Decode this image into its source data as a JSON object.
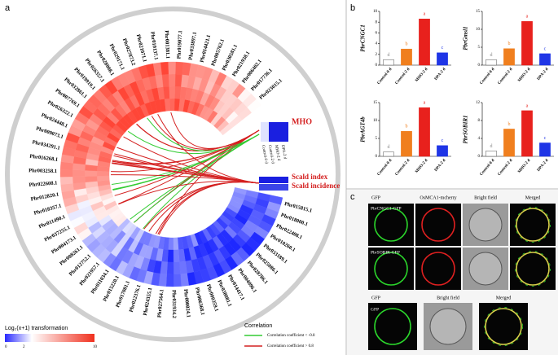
{
  "panel_a": {
    "label": "a",
    "genes": [
      "Phr015815.1",
      "Phr018000.1",
      "Phr022408.1",
      "Phr010260.1",
      "Phr033189.1",
      "Phr025086.1",
      "Phr028786.1",
      "Phr004096.1",
      "Phr014417.1",
      "Phr038081.1",
      "Phr000359.1",
      "Phr006368.1",
      "Phr000024.1",
      "Phr031934.2",
      "Phr027564.1",
      "Phr024355.1",
      "Phr022376.1",
      "Phr017081.1",
      "Phr015220.1",
      "Phr011034.1",
      "Phr021957.1",
      "Phr012752.1",
      "Phr008261.1",
      "Phr004173.1",
      "Phr037255.1",
      "Phr011490.1",
      "Phr018357.1",
      "Phr012820.1",
      "Phr022608.1",
      "Phr003258.1",
      "Phr016268.1",
      "Phr034291.1",
      "Phr009073.1",
      "Phr024448.1",
      "Phr026322.1",
      "Phr007769.1",
      "Phr032861.1",
      "Phr019919.1",
      "Phr026357.1",
      "Phr028008.1",
      "Phr029171.1",
      "Phr027873.2",
      "Phr021071.1",
      "Phr010137.1",
      "Phr001381.1",
      "Phr019077.1",
      "Phr033897.1",
      "Phr014421.1",
      "Phr005762.1",
      "Phr030581.1",
      "Phr021938.1",
      "Phr006402.1",
      "Phr017736.1",
      "Phr023015.1"
    ],
    "tracks": [
      "Control-0 d",
      "Control-2 d",
      "MHO-2 d",
      "DPA-2 d"
    ],
    "trait_main": "MHO",
    "trait_index": "Scald index",
    "trait_incidence": "Scald incidence",
    "legend_title": "Log₂(x+1) transformation",
    "scale_labels": [
      "0",
      "2",
      "10"
    ],
    "corr_title": "Correlation",
    "corr_negative": "Correlation coefficient < -0.8",
    "corr_positive": "Correlation coefficient > 0.8"
  },
  "panel_b": {
    "label": "b"
  },
  "chart_data": [
    {
      "type": "bar",
      "y_label": "PbrCNGC1",
      "categories": [
        "Control-0 d",
        "Control-2 d",
        "MHO-2 d",
        "DPA-2 d"
      ],
      "values": [
        1.0,
        3.0,
        8.6,
        2.3
      ],
      "letters": [
        "d",
        "b",
        "a",
        "c"
      ],
      "colors": [
        "#ffffff",
        "#f07f1e",
        "#e8211d",
        "#1f35e6"
      ],
      "ylim": [
        0,
        10
      ],
      "yticks": [
        0,
        2,
        4,
        6,
        8,
        10
      ]
    },
    {
      "type": "bar",
      "y_label": "PbrGmsl1",
      "categories": [
        "Control-0 d",
        "Control-2 d",
        "MHO-2 d",
        "DPA-2 d"
      ],
      "values": [
        1.5,
        4.6,
        12.2,
        3.2
      ],
      "letters": [
        "d",
        "b",
        "a",
        "c"
      ],
      "colors": [
        "#ffffff",
        "#f07f1e",
        "#e8211d",
        "#1f35e6"
      ],
      "ylim": [
        0,
        15
      ],
      "yticks": [
        0,
        5,
        10,
        15
      ]
    },
    {
      "type": "bar",
      "y_label": "PbrAGT4b",
      "categories": [
        "Control-0 d",
        "Control-2 d",
        "MHO-2 d",
        "DPA-2 d"
      ],
      "values": [
        1.2,
        7.0,
        13.6,
        3.0
      ],
      "letters": [
        "d",
        "b",
        "a",
        "c"
      ],
      "colors": [
        "#ffffff",
        "#f07f1e",
        "#e8211d",
        "#1f35e6"
      ],
      "ylim": [
        0,
        15
      ],
      "yticks": [
        0,
        5,
        10,
        15
      ]
    },
    {
      "type": "bar",
      "y_label": "PbrSOBIR1",
      "categories": [
        "Control-0 d",
        "Control-2 d",
        "MHO-2 d",
        "DPA-2 d"
      ],
      "values": [
        1.2,
        6.1,
        10.2,
        3.0
      ],
      "letters": [
        "d",
        "b",
        "a",
        "c"
      ],
      "colors": [
        "#ffffff",
        "#f07f1e",
        "#e8211d",
        "#1f35e6"
      ],
      "ylim": [
        0,
        12
      ],
      "yticks": [
        0,
        4,
        8,
        12
      ]
    }
  ],
  "panel_c": {
    "label": "c",
    "headers": [
      "GFP",
      "OsMCA1-mcherry",
      "Bright field",
      "Merged"
    ],
    "rows": [
      "PbrCNGC1-GFP",
      "PbrSOBIR-GFP"
    ],
    "control_headers": [
      "GFP",
      "Bright field",
      "Merged"
    ],
    "control_row": "GFP"
  }
}
